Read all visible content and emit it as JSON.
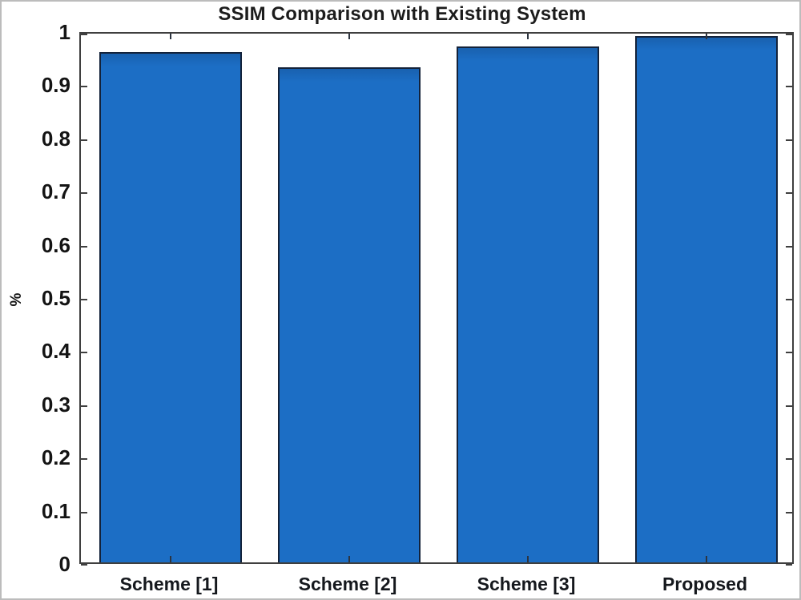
{
  "chart_data": {
    "type": "bar",
    "title": "SSIM Comparison with Existing System",
    "xlabel": "",
    "ylabel": "%",
    "categories": [
      "Scheme [1]",
      "Scheme [2]",
      "Scheme [3]",
      "Proposed"
    ],
    "values": [
      0.96,
      0.93,
      0.97,
      0.99
    ],
    "ylim": [
      0,
      1
    ],
    "yticks": [
      0,
      0.1,
      0.2,
      0.3,
      0.4,
      0.5,
      0.6,
      0.7,
      0.8,
      0.9,
      1
    ],
    "ytick_labels": [
      "0",
      "0.1",
      "0.2",
      "0.3",
      "0.4",
      "0.5",
      "0.6",
      "0.7",
      "0.8",
      "0.9",
      "1"
    ],
    "bar_width_fraction": 0.8,
    "grid": "off",
    "legend": null,
    "colors": {
      "bar_fill": "#1c6ec5",
      "bar_edge": "#13223a",
      "axis_frame": "#3f3f3f",
      "text": "#141414",
      "background": "#ffffff"
    }
  }
}
